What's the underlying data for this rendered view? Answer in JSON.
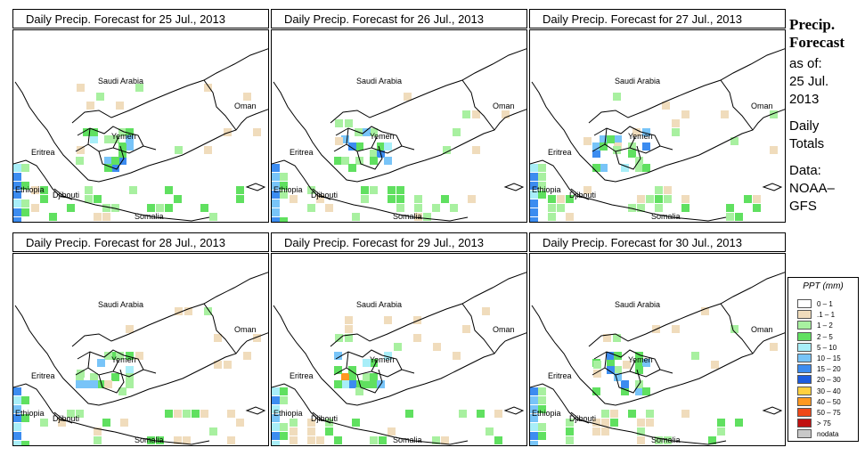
{
  "panels": [
    {
      "title": "Daily Precip. Forecast for  25 Jul., 2013"
    },
    {
      "title": "Daily Precip. Forecast for  26 Jul., 2013"
    },
    {
      "title": "Daily Precip. Forecast for  27 Jul., 2013"
    },
    {
      "title": "Daily Precip. Forecast for  28 Jul., 2013"
    },
    {
      "title": "Daily Precip. Forecast for  29 Jul., 2013"
    },
    {
      "title": "Daily Precip. Forecast for  30 Jul., 2013"
    }
  ],
  "map_labels": {
    "saudi": "Saudi Arabia",
    "oman": "Oman",
    "yemen": "Yemen",
    "eritrea": "Eritrea",
    "ethiopia": "Ethiopia",
    "djibouti": "Djibouti",
    "somalia": "Somalia"
  },
  "side": {
    "title1": "Precip.",
    "title2": "Forecast",
    "asof": "as of:",
    "date1": "25 Jul.",
    "date2": "2013",
    "daily1": "Daily",
    "daily2": "Totals",
    "data1": "Data:",
    "data2": "NOAA–",
    "data3": "GFS"
  },
  "legend": {
    "title": "PPT (mm)",
    "items": [
      {
        "label": "0 – 1",
        "color": "#ffffff"
      },
      {
        "label": ".1 – 1",
        "color": "#f0dcbc"
      },
      {
        "label": "1 – 2",
        "color": "#a8f0a0"
      },
      {
        "label": "2 – 5",
        "color": "#60e060"
      },
      {
        "label": "5 – 10",
        "color": "#a8eef8"
      },
      {
        "label": "10 – 15",
        "color": "#78c4f8"
      },
      {
        "label": "15 – 20",
        "color": "#3c8cf0"
      },
      {
        "label": "20 – 30",
        "color": "#1c5ce0"
      },
      {
        "label": "30 – 40",
        "color": "#ffd040"
      },
      {
        "label": "40 – 50",
        "color": "#ff9820"
      },
      {
        "label": "50 – 75",
        "color": "#f04818"
      },
      {
        "label": "> 75",
        "color": "#c01010"
      },
      {
        "label": "nodata",
        "color": "#c8c8c8"
      }
    ]
  }
}
